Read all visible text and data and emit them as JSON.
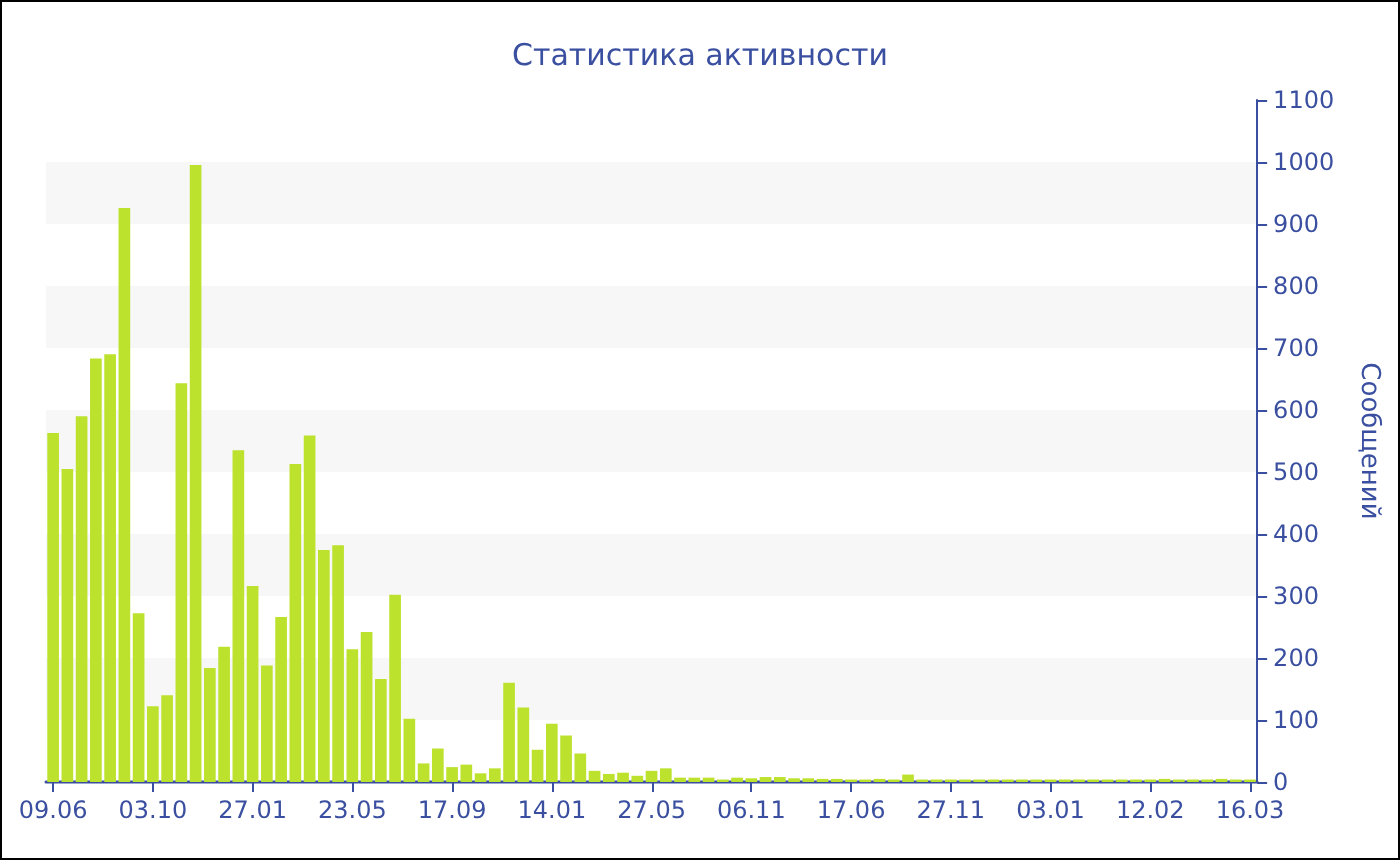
{
  "chart_data": {
    "type": "bar",
    "title": "Статистика активности",
    "ylabel": "Сообщений",
    "categories": [
      "09.06",
      null,
      null,
      null,
      null,
      null,
      null,
      "03.10",
      null,
      null,
      null,
      null,
      null,
      null,
      "27.01",
      null,
      null,
      null,
      null,
      null,
      null,
      "23.05",
      null,
      null,
      null,
      null,
      null,
      null,
      "17.09",
      null,
      null,
      null,
      null,
      null,
      null,
      "14.01",
      null,
      null,
      null,
      null,
      null,
      null,
      "27.05",
      null,
      null,
      null,
      null,
      null,
      null,
      "06.11",
      null,
      null,
      null,
      null,
      null,
      null,
      "17.06",
      null,
      null,
      null,
      null,
      null,
      null,
      "27.11",
      null,
      null,
      null,
      null,
      null,
      null,
      "03.01",
      null,
      null,
      null,
      null,
      null,
      null,
      "12.02",
      null,
      null,
      null,
      null,
      null,
      null,
      "16.03"
    ],
    "values": [
      563,
      505,
      590,
      683,
      690,
      926,
      272,
      122,
      140,
      643,
      995,
      184,
      218,
      535,
      316,
      188,
      266,
      513,
      559,
      374,
      382,
      214,
      242,
      166,
      302,
      102,
      30,
      54,
      24,
      28,
      14,
      22,
      160,
      120,
      52,
      94,
      75,
      46,
      18,
      13,
      15,
      10,
      18,
      22,
      7,
      7,
      7,
      4,
      7,
      6,
      8,
      8,
      6,
      6,
      5,
      5,
      4,
      4,
      5,
      4,
      12,
      4,
      4,
      4,
      4,
      4,
      4,
      4,
      4,
      4,
      4,
      4,
      4,
      4,
      4,
      4,
      4,
      4,
      5,
      4,
      4,
      4,
      5,
      4,
      4
    ],
    "color": "#bde22e",
    "ylim": [
      0,
      1100
    ],
    "yticks": [
      0,
      100,
      200,
      300,
      400,
      500,
      600,
      700,
      800,
      900,
      1000,
      1100
    ],
    "bands": [
      {
        "axis": "y",
        "from": 100,
        "to": 200,
        "color": "#f7f7f7"
      },
      {
        "axis": "y",
        "from": 300,
        "to": 400,
        "color": "#f7f7f7"
      },
      {
        "axis": "y",
        "from": 500,
        "to": 600,
        "color": "#f7f7f7"
      },
      {
        "axis": "y",
        "from": 700,
        "to": 800,
        "color": "#f7f7f7"
      },
      {
        "axis": "y",
        "from": 900,
        "to": 1000,
        "color": "#f7f7f7"
      }
    ]
  }
}
